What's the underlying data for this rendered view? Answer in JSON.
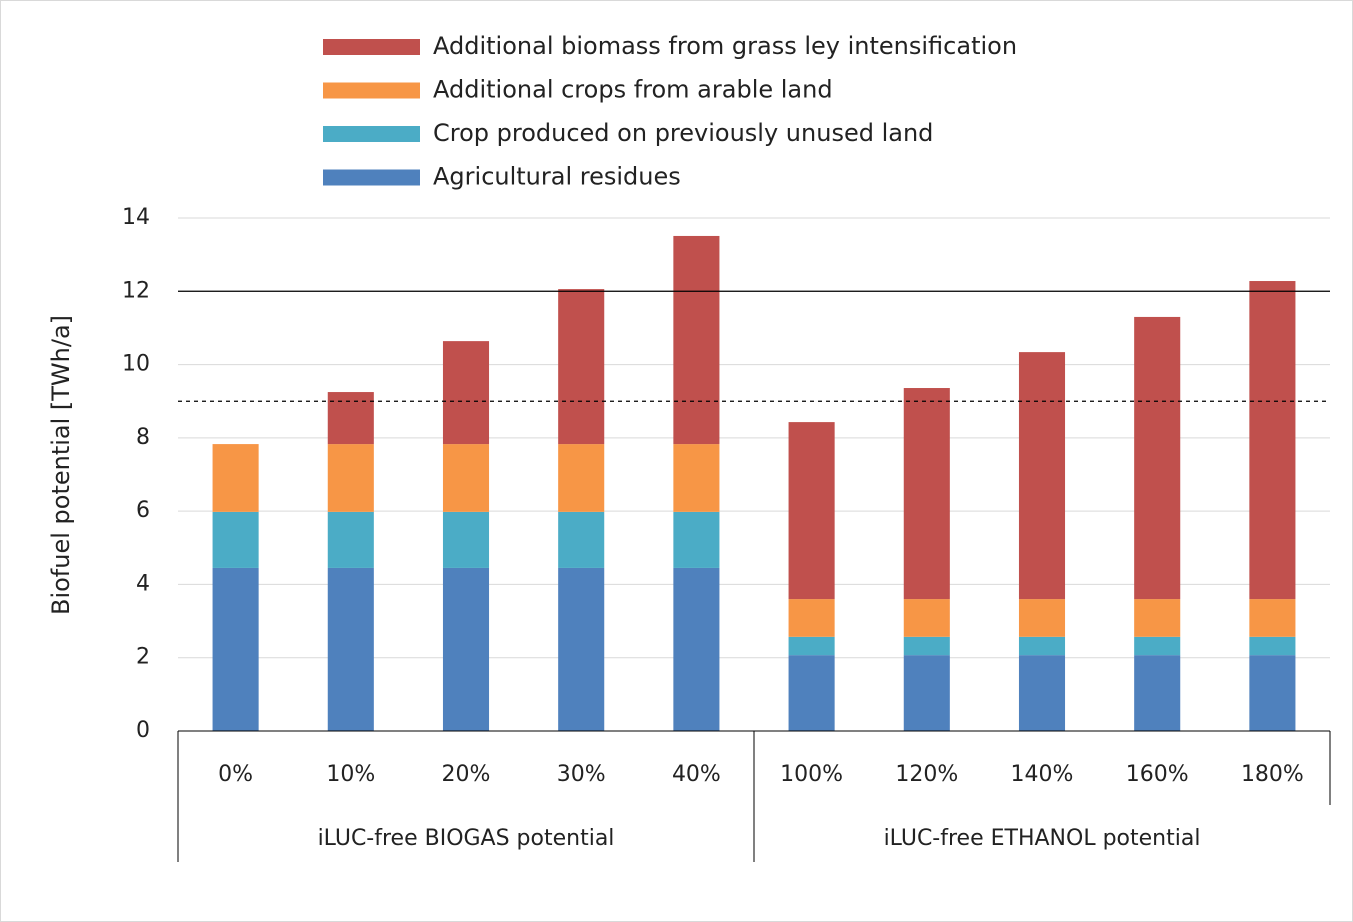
{
  "chart_data": {
    "type": "stacked_bar",
    "y_label": "Biofuel potential [TWh/a]",
    "categories": [
      "0%",
      "10%",
      "20%",
      "30%",
      "40%",
      "100%",
      "120%",
      "140%",
      "160%",
      "180%"
    ],
    "groups": [
      {
        "name": "iLUC-free BIOGAS potential",
        "size": 5
      },
      {
        "name": "iLUC-free ETHANOL potential",
        "size": 5
      }
    ],
    "series": [
      {
        "name": "Agricultural residues",
        "color": "#4f81bd",
        "values": [
          4.45,
          4.45,
          4.45,
          4.45,
          4.45,
          2.07,
          2.07,
          2.07,
          2.07,
          2.07
        ]
      },
      {
        "name": "Crop produced on previously unused land",
        "color": "#4bacc6",
        "values": [
          1.53,
          1.53,
          1.53,
          1.53,
          1.53,
          0.5,
          0.5,
          0.5,
          0.5,
          0.5
        ]
      },
      {
        "name": "Additional crops from arable land",
        "color": "#f79646",
        "values": [
          1.85,
          1.85,
          1.85,
          1.85,
          1.85,
          1.03,
          1.03,
          1.03,
          1.03,
          1.03
        ]
      },
      {
        "name": "Additional biomass from grass ley intensification",
        "color": "#c0504d",
        "values": [
          0,
          1.42,
          2.81,
          4.23,
          5.68,
          4.83,
          5.76,
          6.74,
          7.7,
          8.68
        ]
      }
    ],
    "ylim": [
      0,
      14
    ],
    "yticks": [
      0,
      2,
      4,
      6,
      8,
      10,
      12,
      14
    ],
    "grid": true,
    "reference_lines": [
      {
        "value": 12,
        "style": "solid"
      },
      {
        "value": 9,
        "style": "dashed"
      }
    ],
    "legend": "top"
  }
}
